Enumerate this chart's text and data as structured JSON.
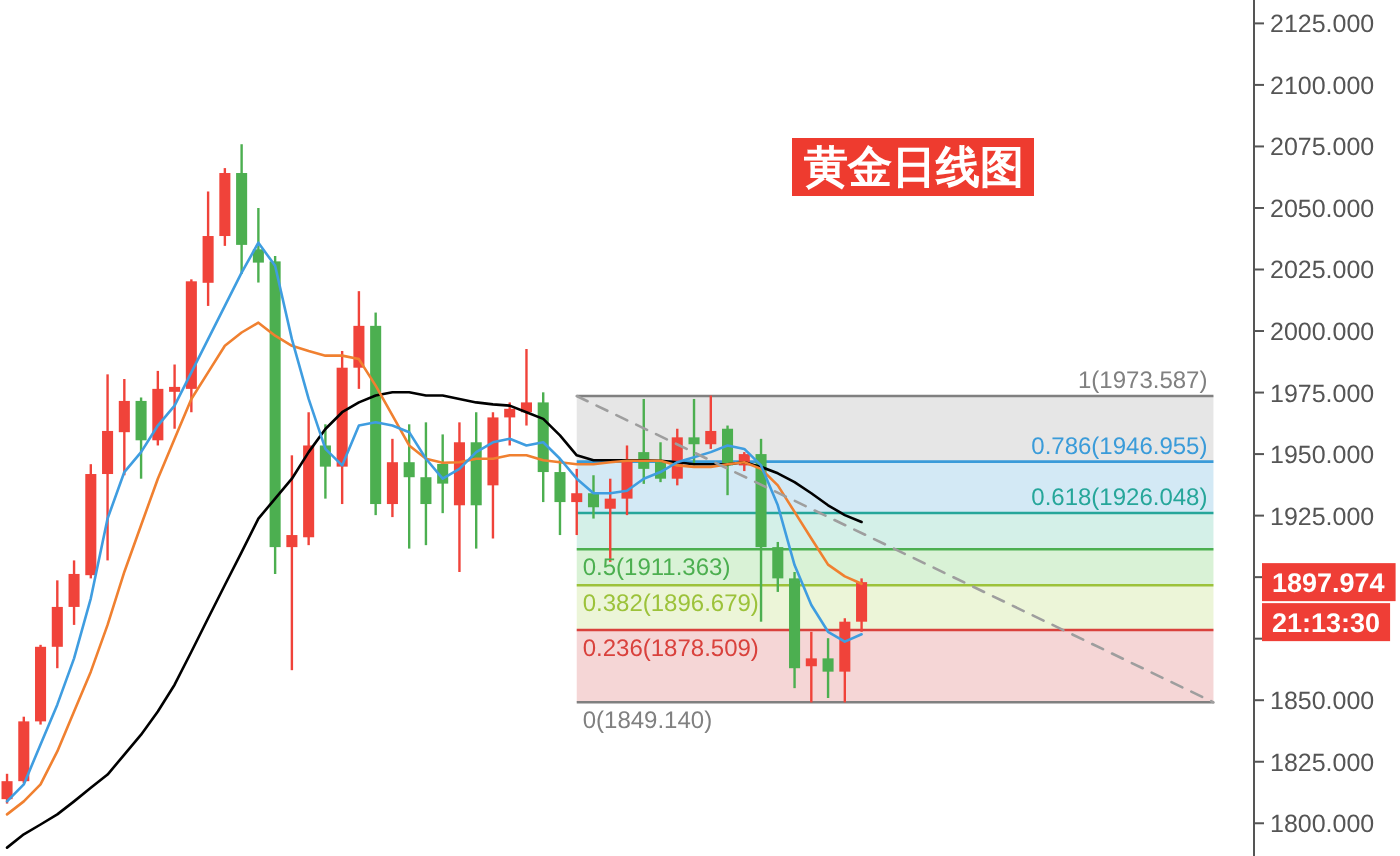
{
  "chart_data": {
    "type": "candlestick",
    "title": "黄金日线图",
    "categories": [
      null,
      null,
      null,
      null,
      null,
      null,
      null,
      null,
      null,
      null,
      null,
      null,
      null,
      null,
      null,
      null,
      null,
      null,
      null,
      null,
      null,
      null,
      null,
      null,
      null,
      null,
      null,
      null,
      null,
      null,
      null,
      null,
      null,
      null,
      null,
      null,
      null,
      null,
      null,
      null,
      null,
      null,
      null,
      null,
      null,
      null,
      null,
      null,
      null,
      null,
      null,
      null,
      null,
      null,
      null,
      null,
      null,
      null,
      null,
      null,
      null,
      null,
      null,
      null,
      null,
      null,
      null,
      null,
      null,
      null,
      null,
      null,
      null,
      null,
      null
    ],
    "ohlc": [
      [
        1809.8,
        1820.1,
        1808.0,
        1817.1
      ],
      [
        1817.1,
        1843.3,
        1816.3,
        1841.4
      ],
      [
        1841.4,
        1872.5,
        1840.1,
        1871.7
      ],
      [
        1871.7,
        1898.7,
        1863.0,
        1887.9
      ],
      [
        1887.9,
        1906.8,
        1880.6,
        1901.3
      ],
      [
        1900.8,
        1945.9,
        1899.5,
        1941.9
      ],
      [
        1941.9,
        1982.4,
        1906.8,
        1959.4
      ],
      [
        1958.9,
        1980.5,
        1941.4,
        1971.6
      ],
      [
        1971.6,
        1973.0,
        1940.0,
        1955.6
      ],
      [
        1955.6,
        1983.8,
        1953.5,
        1976.5
      ],
      [
        1975.3,
        1986.4,
        1960.3,
        1977.3
      ],
      [
        1976.5,
        2021.0,
        1967.0,
        2020.2
      ],
      [
        2019.6,
        2056.7,
        2010.2,
        2038.6
      ],
      [
        2038.6,
        2066.2,
        2034.6,
        2064.2
      ],
      [
        2064.2,
        2075.9,
        2023.2,
        2035.0
      ],
      [
        2033.2,
        2050.0,
        2019.7,
        2027.8
      ],
      [
        2028.3,
        2030.5,
        1901.3,
        1912.2
      ],
      [
        1912.2,
        1949.5,
        1862.2,
        1917.1
      ],
      [
        1916.2,
        1967.0,
        1913.0,
        1953.5
      ],
      [
        1953.5,
        1962.1,
        1931.9,
        1944.9
      ],
      [
        1944.9,
        1991.9,
        1929.7,
        1985.1
      ],
      [
        1985.1,
        2016.2,
        1976.5,
        2002.1
      ],
      [
        2002.1,
        2007.5,
        1925.2,
        1929.7
      ],
      [
        1929.7,
        1956.2,
        1924.4,
        1946.7
      ],
      [
        1946.7,
        1962.1,
        1911.6,
        1940.6
      ],
      [
        1940.6,
        1962.9,
        1913.0,
        1929.7
      ],
      [
        1946.0,
        1958.0,
        1926.0,
        1938.0
      ],
      [
        1929.2,
        1962.9,
        1902.1,
        1954.8
      ],
      [
        1954.8,
        1967.0,
        1911.6,
        1929.2
      ],
      [
        1937.3,
        1967.0,
        1915.7,
        1964.9
      ],
      [
        1964.9,
        1971.0,
        1953.5,
        1968.4
      ],
      [
        1967.0,
        1992.7,
        1961.6,
        1971.0
      ],
      [
        1971.0,
        1975.1,
        1930.5,
        1942.7
      ],
      [
        1942.7,
        1948.1,
        1917.1,
        1930.5
      ],
      [
        1930.5,
        1944.0,
        1917.1,
        1934.1
      ],
      [
        1934.1,
        1941.4,
        1923.8,
        1928.4
      ],
      [
        1927.8,
        1940.0,
        1906.2,
        1931.9
      ],
      [
        1931.9,
        1953.5,
        1925.2,
        1947.5
      ],
      [
        1950.8,
        1972.4,
        1937.9,
        1944.0
      ],
      [
        1946.7,
        1954.8,
        1938.6,
        1940.0
      ],
      [
        1940.0,
        1960.3,
        1937.3,
        1956.8
      ],
      [
        1956.8,
        1972.4,
        1945.4,
        1954.0
      ],
      [
        1954.0,
        1973.8,
        1952.1,
        1959.4
      ],
      [
        1960.3,
        1961.6,
        1933.3,
        1945.4
      ],
      [
        1945.4,
        1950.8,
        1943.1,
        1950.0
      ],
      [
        1950.0,
        1956.2,
        1881.9,
        1912.2
      ],
      [
        1912.2,
        1914.3,
        1894.0,
        1899.5
      ],
      [
        1899.5,
        1902.1,
        1854.9,
        1863.0
      ],
      [
        1863.8,
        1877.8,
        1849.1,
        1867.0
      ],
      [
        1867.0,
        1875.2,
        1850.9,
        1861.6
      ],
      [
        1861.6,
        1883.3,
        1849.1,
        1881.9
      ],
      [
        1881.9,
        1899.5,
        1877.8,
        1897.974
      ],
      null,
      null,
      null,
      null,
      null,
      null,
      null,
      null,
      null,
      null,
      null,
      null,
      null,
      null,
      null,
      null,
      null,
      null,
      null,
      null,
      null,
      null,
      null
    ],
    "colors": [
      "#f0433a",
      "#f0433a",
      "#f0433a",
      "#f0433a",
      "#f0433a",
      "#f0433a",
      "#f0433a",
      "#f0433a",
      "#4caf50",
      "#f0433a",
      "#f0433a",
      "#f0433a",
      "#f0433a",
      "#f0433a",
      "#4caf50",
      "#4caf50",
      "#4caf50",
      "#f0433a",
      "#f0433a",
      "#4caf50",
      "#f0433a",
      "#f0433a",
      "#4caf50",
      "#f0433a",
      "#4caf50",
      "#4caf50",
      "#4caf50",
      "#f0433a",
      "#4caf50",
      "#f0433a",
      "#f0433a",
      "#f0433a",
      "#4caf50",
      "#4caf50",
      "#f0433a",
      "#4caf50",
      "#f0433a",
      "#f0433a",
      "#4caf50",
      "#4caf50",
      "#f0433a",
      "#4caf50",
      "#f0433a",
      "#4caf50",
      "#f0433a",
      "#4caf50",
      "#4caf50",
      "#4caf50",
      "#f0433a",
      "#4caf50",
      "#f0433a",
      "#f0433a",
      null,
      null,
      null,
      null,
      null,
      null,
      null,
      null,
      null,
      null,
      null,
      null,
      null,
      null,
      null,
      null,
      null,
      null,
      null,
      null,
      null,
      null,
      null
    ],
    "series": [
      {
        "type": "line",
        "color": "#000000",
        "values": [
          1790.1,
          1795.5,
          1799.5,
          1803.6,
          1808.9,
          1814.4,
          1819.8,
          1827.9,
          1836.0,
          1845.4,
          1856.3,
          1869.7,
          1883.3,
          1896.8,
          1910.2,
          1923.8,
          1931.9,
          1940.0,
          1950.8,
          1960.2,
          1967.0,
          1971.0,
          1973.8,
          1975.1,
          1975.1,
          1973.8,
          1973.8,
          1972.4,
          1971.0,
          1970.2,
          1969.7,
          1967.0,
          1964.3,
          1957.6,
          1949.5,
          1947.5,
          1947.5,
          1947.5,
          1947.5,
          1947.3,
          1946.7,
          1945.9,
          1945.9,
          1945.9,
          1946.7,
          1944.8,
          1942.2,
          1938.6,
          1934.1,
          1929.2,
          1925.2,
          1922.4,
          null,
          null,
          null,
          null,
          null,
          null,
          null,
          null,
          null,
          null,
          null,
          null,
          null,
          null,
          null,
          null,
          null,
          null,
          null,
          null,
          null,
          null,
          null
        ]
      },
      {
        "type": "line",
        "color": "#f08030",
        "values": [
          1803.6,
          1808.9,
          1815.8,
          1829.2,
          1845.4,
          1861.6,
          1880.6,
          1902.1,
          1921.1,
          1940.0,
          1956.2,
          1972.4,
          1983.2,
          1994.0,
          1999.4,
          2003.4,
          1998.1,
          1994.0,
          1991.9,
          1990.0,
          1990.0,
          1988.6,
          1977.8,
          1965.7,
          1953.5,
          1948.1,
          1946.5,
          1946.7,
          1948.1,
          1948.1,
          1949.5,
          1949.5,
          1947.5,
          1946.7,
          1945.9,
          1945.9,
          1946.7,
          1947.3,
          1947.3,
          1947.3,
          1945.4,
          1944.8,
          1944.8,
          1945.9,
          1946.7,
          1944.0,
          1937.3,
          1926.5,
          1915.7,
          1905.1,
          1900.3,
          1897.3,
          null,
          null,
          null,
          null,
          null,
          null,
          null,
          null,
          null,
          null,
          null,
          null,
          null,
          null,
          null,
          null,
          null,
          null,
          null,
          null,
          null,
          null,
          null
        ]
      },
      {
        "type": "line",
        "color": "#3f9de0",
        "values": [
          1808.9,
          1815.8,
          1832.0,
          1848.2,
          1867.0,
          1891.4,
          1923.8,
          1942.7,
          1950.8,
          1961.6,
          1969.7,
          1983.2,
          1996.7,
          2010.2,
          2023.7,
          2035.9,
          2026.5,
          1996.7,
          1972.4,
          1952.1,
          1945.4,
          1961.6,
          1962.9,
          1961.6,
          1958.9,
          1948.1,
          1940.0,
          1944.0,
          1950.8,
          1954.8,
          1956.2,
          1953.5,
          1954.8,
          1948.1,
          1940.0,
          1934.1,
          1934.1,
          1935.1,
          1940.0,
          1942.7,
          1946.7,
          1948.7,
          1950.8,
          1953.5,
          1952.1,
          1945.4,
          1929.2,
          1904.9,
          1888.7,
          1877.8,
          1873.8,
          1876.8,
          null,
          null,
          null,
          null,
          null,
          null,
          null,
          null,
          null,
          null,
          null,
          null,
          null,
          null,
          null,
          null,
          null,
          null,
          null,
          null,
          null,
          null,
          null
        ]
      },
      {
        "type": "line",
        "color": "#9e9e9e",
        "line_style": "dashed",
        "values": [
          null,
          null,
          null,
          null,
          null,
          null,
          null,
          null,
          null,
          null,
          null,
          null,
          null,
          null,
          null,
          null,
          null,
          null,
          null,
          null,
          null,
          null,
          null,
          null,
          null,
          null,
          null,
          null,
          null,
          null,
          null,
          null,
          null,
          null,
          1973.587,
          null,
          null,
          null,
          null,
          null,
          null,
          null,
          null,
          null,
          null,
          null,
          null,
          null,
          null,
          null,
          null,
          null,
          null,
          null,
          null,
          null,
          null,
          null,
          null,
          null,
          null,
          null,
          null,
          null,
          null,
          null,
          null,
          null,
          null,
          null,
          null,
          null,
          1849.14,
          null,
          null
        ]
      }
    ],
    "ref_lines": [
      {
        "axis": "y",
        "value": 1973.587,
        "label": "1(1973.587)",
        "color": "#808080"
      },
      {
        "axis": "y",
        "value": 1946.955,
        "label": "0.786(1946.955)",
        "color": "#3a9bd9"
      },
      {
        "axis": "y",
        "value": 1926.048,
        "label": "0.618(1926.048)",
        "color": "#26a69a"
      },
      {
        "axis": "y",
        "value": 1911.363,
        "label": "0.5(1911.363)",
        "color": "#4caf50"
      },
      {
        "axis": "y",
        "value": 1896.679,
        "label": "0.382(1896.679)",
        "color": "#9cc23a"
      },
      {
        "axis": "y",
        "value": 1878.509,
        "label": "0.236(1878.509)",
        "color": "#d9413c"
      },
      {
        "axis": "y",
        "value": 1849.14,
        "label": "0(1849.140)",
        "color": "#808080"
      }
    ],
    "bands": [
      {
        "axis": "y",
        "from": 1946.955,
        "to": 1973.587,
        "color": "#e6e6e6"
      },
      {
        "axis": "y",
        "from": 1926.048,
        "to": 1946.955,
        "color": "#d3e9f5"
      },
      {
        "axis": "y",
        "from": 1911.363,
        "to": 1926.048,
        "color": "#d4f0e8"
      },
      {
        "axis": "y",
        "from": 1896.679,
        "to": 1911.363,
        "color": "#d9f2d6"
      },
      {
        "axis": "y",
        "from": 1878.509,
        "to": 1896.679,
        "color": "#ecf5d8"
      },
      {
        "axis": "y",
        "from": 1849.14,
        "to": 1878.509,
        "color": "#f5d6d6"
      }
    ],
    "annotations": [
      "1897.974",
      "21:13:30"
    ],
    "ylim": [
      1786.7,
      2134.5
    ],
    "yticks": [
      {
        "value": 1800,
        "label": "1800.000"
      },
      {
        "value": 1825,
        "label": "1825.000"
      },
      {
        "value": 1850,
        "label": "1850.000"
      },
      {
        "value": 1875,
        "label": null
      },
      {
        "value": 1900,
        "label": null
      },
      {
        "value": 1925,
        "label": "1925.000"
      },
      {
        "value": 1950,
        "label": "1950.000"
      },
      {
        "value": 1975,
        "label": "1975.000"
      },
      {
        "value": 2000,
        "label": "2000.000"
      },
      {
        "value": 2025,
        "label": "2025.000"
      },
      {
        "value": 2050,
        "label": "2050.000"
      },
      {
        "value": 2075,
        "label": "2075.000"
      },
      {
        "value": 2100,
        "label": "2100.000"
      },
      {
        "value": 2125,
        "label": "2125.000"
      }
    ],
    "tick_labels": "y",
    "grid": false
  }
}
